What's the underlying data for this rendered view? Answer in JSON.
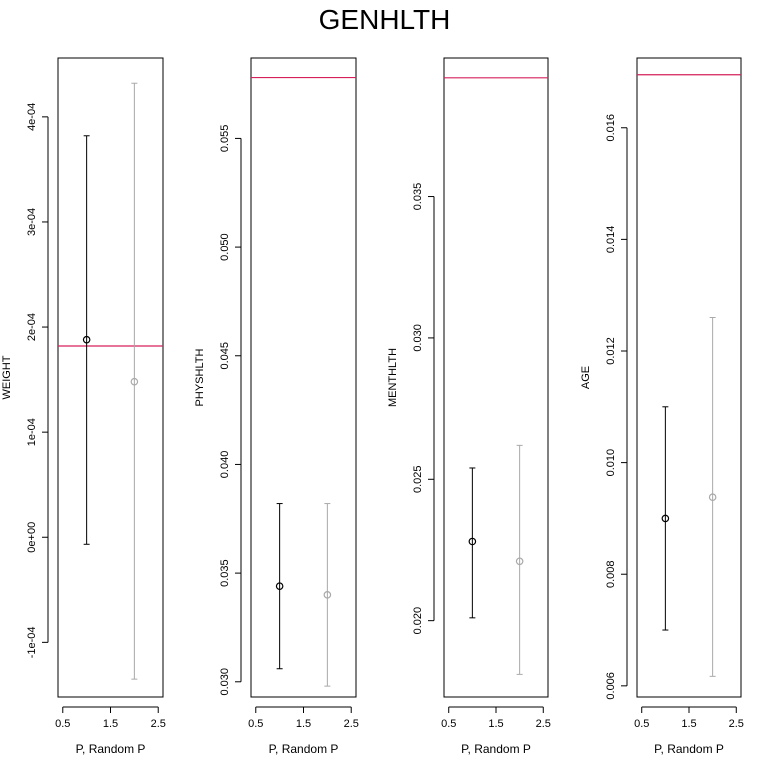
{
  "title": "GENHLTH",
  "colors": {
    "p_series": "#000000",
    "random_p_series": "#a9a9a9",
    "reference_line": "#d6205a",
    "frame": "#000000"
  },
  "chart_data": [
    {
      "type": "scatter",
      "subtype": "errorbar",
      "ylabel": "WEIGHT",
      "xlabel": "P, Random P",
      "xlim": [
        0.4,
        2.6
      ],
      "x_ticks": [
        "0.5",
        "1.5",
        "2.5"
      ],
      "x_tick_values": [
        0.5,
        1.5,
        2.5
      ],
      "ylim": [
        -0.000152,
        0.000456
      ],
      "y_ticks": [
        "-1e-04",
        "0e+00",
        "1e-04",
        "2e-04",
        "3e-04",
        "4e-04"
      ],
      "y_tick_values": [
        -0.0001,
        0.0,
        0.0001,
        0.0002,
        0.0003,
        0.0004
      ],
      "series": [
        {
          "name": "P",
          "x": 1,
          "y": 0.000188,
          "lower": -6.7e-06,
          "upper": 0.000382
        },
        {
          "name": "Random P",
          "x": 2,
          "y": 0.000148,
          "lower": -0.000135,
          "upper": 0.000432
        }
      ],
      "reference_line": 0.000182
    },
    {
      "type": "scatter",
      "subtype": "errorbar",
      "ylabel": "PHYSHLTH",
      "xlabel": "P, Random P",
      "xlim": [
        0.4,
        2.6
      ],
      "x_ticks": [
        "0.5",
        "1.5",
        "2.5"
      ],
      "x_tick_values": [
        0.5,
        1.5,
        2.5
      ],
      "ylim": [
        0.0293,
        0.0587
      ],
      "y_ticks": [
        "0.030",
        "0.035",
        "0.040",
        "0.045",
        "0.050",
        "0.055"
      ],
      "y_tick_values": [
        0.03,
        0.035,
        0.04,
        0.045,
        0.05,
        0.055
      ],
      "series": [
        {
          "name": "P",
          "x": 1,
          "y": 0.0344,
          "lower": 0.0306,
          "upper": 0.0382
        },
        {
          "name": "Random P",
          "x": 2,
          "y": 0.034,
          "lower": 0.0298,
          "upper": 0.0382
        }
      ],
      "reference_line": 0.0578
    },
    {
      "type": "scatter",
      "subtype": "errorbar",
      "ylabel": "MENTHLTH",
      "xlabel": "P, Random P",
      "xlim": [
        0.4,
        2.6
      ],
      "x_ticks": [
        "0.5",
        "1.5",
        "2.5"
      ],
      "x_tick_values": [
        0.5,
        1.5,
        2.5
      ],
      "ylim": [
        0.0173,
        0.0399
      ],
      "y_ticks": [
        "0.020",
        "0.025",
        "0.030",
        "0.035"
      ],
      "y_tick_values": [
        0.02,
        0.025,
        0.03,
        0.035
      ],
      "series": [
        {
          "name": "P",
          "x": 1,
          "y": 0.0228,
          "lower": 0.0201,
          "upper": 0.0254
        },
        {
          "name": "Random P",
          "x": 2,
          "y": 0.0221,
          "lower": 0.0181,
          "upper": 0.0262
        }
      ],
      "reference_line": 0.0392
    },
    {
      "type": "scatter",
      "subtype": "errorbar",
      "ylabel": "AGE",
      "xlabel": "P, Random P",
      "xlim": [
        0.4,
        2.6
      ],
      "x_ticks": [
        "0.5",
        "1.5",
        "2.5"
      ],
      "x_tick_values": [
        0.5,
        1.5,
        2.5
      ],
      "ylim": [
        0.0058,
        0.01725
      ],
      "y_ticks": [
        "0.006",
        "0.008",
        "0.010",
        "0.012",
        "0.014",
        "0.016"
      ],
      "y_tick_values": [
        0.006,
        0.008,
        0.01,
        0.012,
        0.014,
        0.016
      ],
      "series": [
        {
          "name": "P",
          "x": 1,
          "y": 0.009,
          "lower": 0.007,
          "upper": 0.011
        },
        {
          "name": "Random P",
          "x": 2,
          "y": 0.00938,
          "lower": 0.00617,
          "upper": 0.0126
        }
      ],
      "reference_line": 0.01695
    }
  ]
}
